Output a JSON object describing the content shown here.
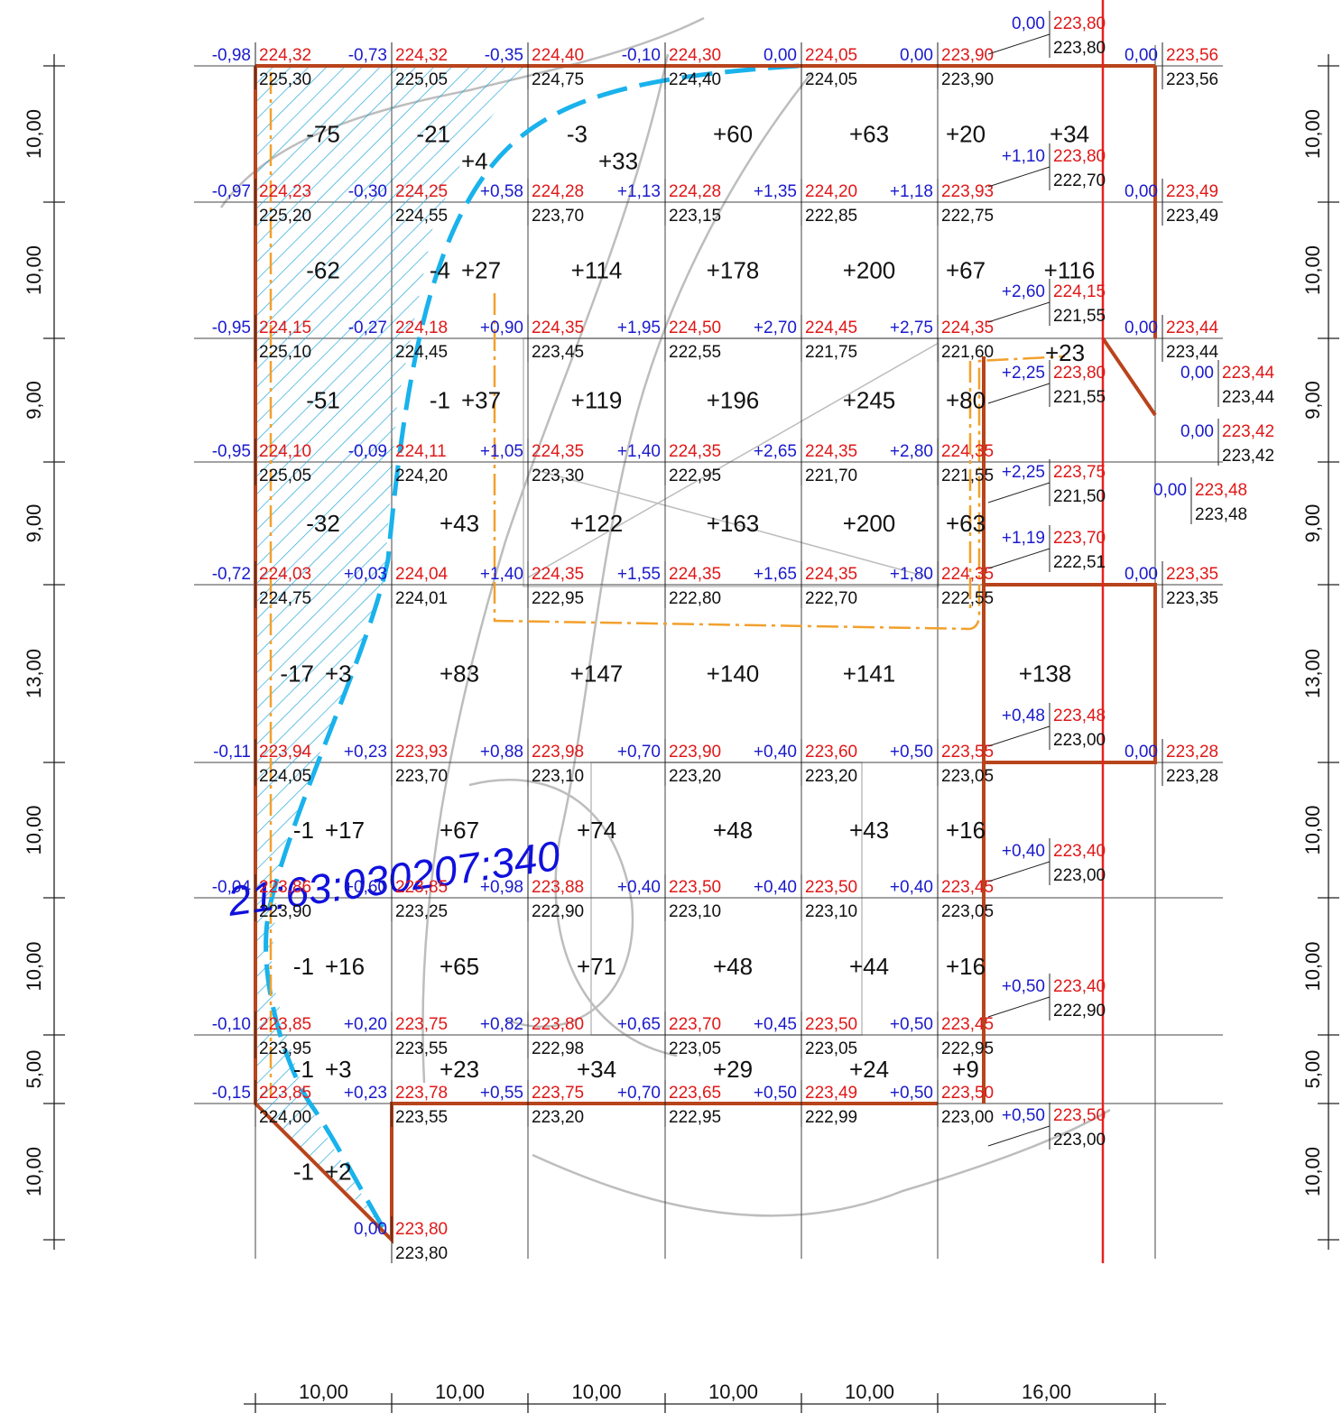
{
  "cadastral_number": "21:63:030207:340",
  "grid_nodes": [
    [
      [
        "-0,98",
        "224,32",
        "225,30"
      ],
      [
        "-0,73",
        "224,32",
        "225,05"
      ],
      [
        "-0,35",
        "224,40",
        "224,75"
      ],
      [
        "-0,10",
        "224,30",
        "224,40"
      ],
      [
        "0,00",
        "224,05",
        "224,05"
      ],
      [
        "0,00",
        "223,90",
        "223,90"
      ]
    ],
    [
      [
        "-0,97",
        "224,23",
        "225,20"
      ],
      [
        "-0,30",
        "224,25",
        "224,55"
      ],
      [
        "+0,58",
        "224,28",
        "223,70"
      ],
      [
        "+1,13",
        "224,28",
        "223,15"
      ],
      [
        "+1,35",
        "224,20",
        "222,85"
      ],
      [
        "+1,18",
        "223,93",
        "222,75"
      ]
    ],
    [
      [
        "-0,95",
        "224,15",
        "225,10"
      ],
      [
        "-0,27",
        "224,18",
        "224,45"
      ],
      [
        "+0,90",
        "224,35",
        "223,45"
      ],
      [
        "+1,95",
        "224,50",
        "222,55"
      ],
      [
        "+2,70",
        "224,45",
        "221,75"
      ],
      [
        "+2,75",
        "224,35",
        "221,60"
      ]
    ],
    [
      [
        "-0,95",
        "224,10",
        "225,05"
      ],
      [
        "-0,09",
        "224,11",
        "224,20"
      ],
      [
        "+1,05",
        "224,35",
        "223,30"
      ],
      [
        "+1,40",
        "224,35",
        "222,95"
      ],
      [
        "+2,65",
        "224,35",
        "221,70"
      ],
      [
        "+2,80",
        "224,35",
        "221,55"
      ]
    ],
    [
      [
        "-0,72",
        "224,03",
        "224,75"
      ],
      [
        "+0,03",
        "224,04",
        "224,01"
      ],
      [
        "+1,40",
        "224,35",
        "222,95"
      ],
      [
        "+1,55",
        "224,35",
        "222,80"
      ],
      [
        "+1,65",
        "224,35",
        "222,70"
      ],
      [
        "+1,80",
        "224,35",
        "222,55"
      ]
    ],
    [
      [
        "-0,11",
        "223,94",
        "224,05"
      ],
      [
        "+0,23",
        "223,93",
        "223,70"
      ],
      [
        "+0,88",
        "223,98",
        "223,10"
      ],
      [
        "+0,70",
        "223,90",
        "223,20"
      ],
      [
        "+0,40",
        "223,60",
        "223,20"
      ],
      [
        "+0,50",
        "223,55",
        "223,05"
      ]
    ],
    [
      [
        "-0,04",
        "223,86",
        "223,90"
      ],
      [
        "+0,60",
        "223,85",
        "223,25"
      ],
      [
        "+0,98",
        "223,88",
        "222,90"
      ],
      [
        "+0,40",
        "223,50",
        "223,10"
      ],
      [
        "+0,40",
        "223,50",
        "223,10"
      ],
      [
        "+0,40",
        "223,45",
        "223,05"
      ]
    ],
    [
      [
        "-0,10",
        "223,85",
        "223,95"
      ],
      [
        "+0,20",
        "223,75",
        "223,55"
      ],
      [
        "+0,82",
        "223,80",
        "222,98"
      ],
      [
        "+0,65",
        "223,70",
        "223,05"
      ],
      [
        "+0,45",
        "223,50",
        "223,05"
      ],
      [
        "+0,50",
        "223,45",
        "222,95"
      ]
    ],
    [
      [
        "-0,15",
        "223,85",
        "224,00"
      ],
      [
        "+0,23",
        "223,78",
        "223,55"
      ],
      [
        "+0,55",
        "223,75",
        "223,20"
      ],
      [
        "+0,70",
        "223,65",
        "222,95"
      ],
      [
        "+0,50",
        "223,49",
        "222,99"
      ],
      [
        "+0,50",
        "223,50",
        "223,00"
      ]
    ]
  ],
  "side_nodes": [
    [
      "0,00",
      "223,80",
      "223,80"
    ],
    [
      "+1,10",
      "223,80",
      "222,70"
    ],
    [
      "+2,60",
      "224,15",
      "221,55"
    ],
    [
      "+2,25",
      "223,80",
      "221,55"
    ],
    [
      "+2,25",
      "223,75",
      "221,50"
    ],
    [
      "+1,19",
      "223,70",
      "222,51"
    ],
    [
      "+0,48",
      "223,48",
      "223,00"
    ],
    [
      "+0,40",
      "223,40",
      "223,00"
    ],
    [
      "+0,50",
      "223,40",
      "222,90"
    ],
    [
      "+0,50",
      "223,50",
      "223,00"
    ],
    [
      "0,00",
      "223,56",
      "223,56"
    ],
    [
      "0,00",
      "223,49",
      "223,49"
    ],
    [
      "0,00",
      "223,44",
      "223,44"
    ],
    [
      "0,00",
      "223,44",
      "223,44"
    ],
    [
      "0,00",
      "223,42",
      "223,42"
    ],
    [
      "0,00",
      "223,48",
      "223,48"
    ],
    [
      "0,00",
      "223,35",
      "223,35"
    ],
    [
      "0,00",
      "223,28",
      "223,28"
    ],
    [
      "0,00",
      "223,80",
      "223,80"
    ]
  ],
  "volumes": [
    [
      "-75",
      [
        "-21",
        "+4"
      ],
      [
        "-3",
        "+33"
      ],
      "+60",
      "+63",
      "+20",
      "+34"
    ],
    [
      "-62",
      [
        "-4",
        "+27"
      ],
      "+114",
      "+178",
      "+200",
      "+67",
      "+116"
    ],
    [
      "-51",
      [
        "-1",
        "+37"
      ],
      "+119",
      "+196",
      "+245",
      "+80",
      "+23"
    ],
    [
      "-32",
      "+43",
      "+122",
      "+163",
      "+200",
      "+63"
    ],
    [
      [
        "-17",
        "+3"
      ],
      "+83",
      "+147",
      "+140",
      "+141",
      "+138"
    ],
    [
      [
        "-1",
        "+17"
      ],
      "+67",
      "+74",
      "+48",
      "+43",
      "+16"
    ],
    [
      [
        "-1",
        "+16"
      ],
      "+65",
      "+71",
      "+48",
      "+44",
      "+16"
    ],
    [
      [
        "-1",
        "+3"
      ],
      "+23",
      "+34",
      "+29",
      "+24",
      "+9"
    ],
    [
      [
        "-1",
        "+2"
      ]
    ]
  ],
  "dimensions_left": [
    "10,00",
    "10,00",
    "9,00",
    "9,00",
    "13,00",
    "10,00",
    "10,00",
    "5,00",
    "10,00"
  ],
  "dimensions_right": [
    "10,00",
    "10,00",
    "9,00",
    "9,00",
    "13,00",
    "10,00",
    "10,00",
    "5,00",
    "10,00"
  ],
  "dimensions_bottom": [
    "10,00",
    "10,00",
    "10,00",
    "10,00",
    "10,00",
    "16,00"
  ]
}
